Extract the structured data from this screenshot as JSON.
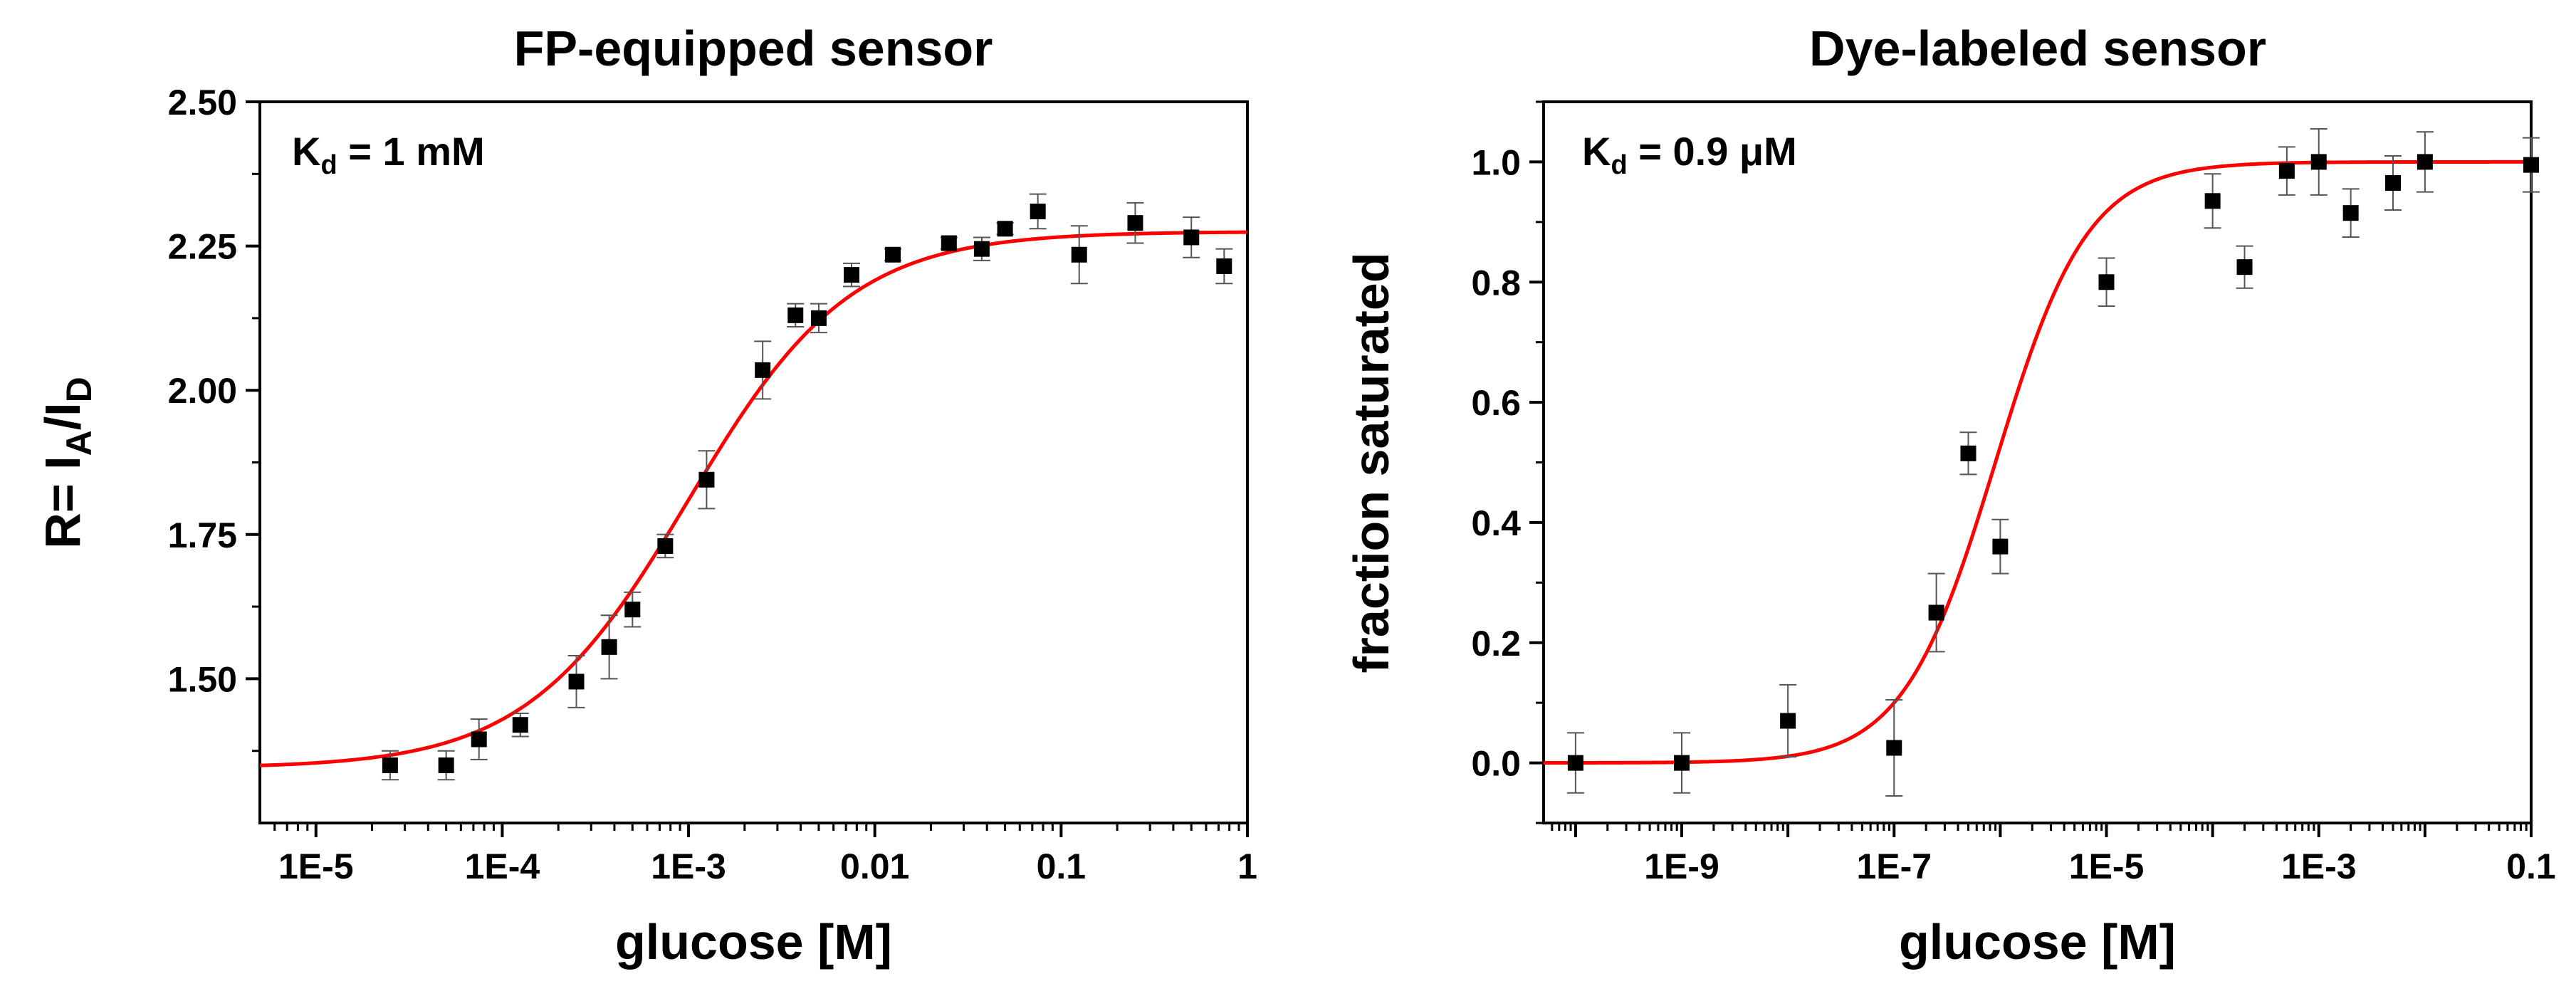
{
  "colors": {
    "fit_line": "#ff0000",
    "markers": "#000000",
    "error_bars": "#555555",
    "axes": "#000000",
    "background": "#ffffff"
  },
  "chart_data": [
    {
      "type": "scatter",
      "title": "FP-equipped sensor",
      "xlabel": "glucose [M]",
      "ylabel": {
        "prefix": "R= I",
        "sub1": "A",
        "mid": "/I",
        "sub2": "D"
      },
      "x_scale": "log",
      "xlim": [
        5e-06,
        1
      ],
      "ylim": [
        1.25,
        2.5
      ],
      "x_ticks": [
        {
          "value": 1e-05,
          "label": "1E-5"
        },
        {
          "value": 0.0001,
          "label": "1E-4"
        },
        {
          "value": 0.001,
          "label": "1E-3"
        },
        {
          "value": 0.01,
          "label": "0.01"
        },
        {
          "value": 0.1,
          "label": "0.1"
        },
        {
          "value": 1,
          "label": "1"
        }
      ],
      "y_ticks": [
        {
          "value": 1.5,
          "label": "1.50"
        },
        {
          "value": 1.75,
          "label": "1.75"
        },
        {
          "value": 2.0,
          "label": "2.00"
        },
        {
          "value": 2.25,
          "label": "2.25"
        },
        {
          "value": 2.5,
          "label": "2.50"
        }
      ],
      "annotation": {
        "main": "K",
        "sub": "d",
        "rest": " = 1 mM"
      },
      "fit": {
        "model": "hill",
        "bottom": 1.345,
        "top": 2.275,
        "kd": 0.001,
        "n": 1
      },
      "points": [
        {
          "x": 2.5e-05,
          "y": 1.35,
          "err": 0.025
        },
        {
          "x": 5e-05,
          "y": 1.35,
          "err": 0.025
        },
        {
          "x": 7.5e-05,
          "y": 1.395,
          "err": 0.035
        },
        {
          "x": 0.000125,
          "y": 1.42,
          "err": 0.02
        },
        {
          "x": 0.00025,
          "y": 1.495,
          "err": 0.045
        },
        {
          "x": 0.000375,
          "y": 1.555,
          "err": 0.055
        },
        {
          "x": 0.0005,
          "y": 1.62,
          "err": 0.03
        },
        {
          "x": 0.00075,
          "y": 1.73,
          "err": 0.02
        },
        {
          "x": 0.00125,
          "y": 1.845,
          "err": 0.05
        },
        {
          "x": 0.0025,
          "y": 2.035,
          "err": 0.05
        },
        {
          "x": 0.00375,
          "y": 2.13,
          "err": 0.02
        },
        {
          "x": 0.005,
          "y": 2.125,
          "err": 0.025
        },
        {
          "x": 0.0075,
          "y": 2.2,
          "err": 0.02
        },
        {
          "x": 0.0125,
          "y": 2.235,
          "err": 0.01
        },
        {
          "x": 0.025,
          "y": 2.255,
          "err": 0.01
        },
        {
          "x": 0.0375,
          "y": 2.245,
          "err": 0.02
        },
        {
          "x": 0.05,
          "y": 2.28,
          "err": 0.01
        },
        {
          "x": 0.075,
          "y": 2.31,
          "err": 0.03
        },
        {
          "x": 0.125,
          "y": 2.235,
          "err": 0.05
        },
        {
          "x": 0.25,
          "y": 2.29,
          "err": 0.035
        },
        {
          "x": 0.5,
          "y": 2.265,
          "err": 0.035
        },
        {
          "x": 0.75,
          "y": 2.215,
          "err": 0.03
        }
      ]
    },
    {
      "type": "scatter",
      "title": "Dye-labeled sensor",
      "xlabel": "glucose [M]",
      "ylabel": "fraction saturated",
      "x_scale": "log",
      "xlim": [
        5e-11,
        0.1
      ],
      "ylim": [
        -0.1,
        1.1
      ],
      "x_ticks": [
        {
          "value": 1e-09,
          "label": "1E-9"
        },
        {
          "value": 1e-07,
          "label": "1E-7"
        },
        {
          "value": 1e-05,
          "label": "1E-5"
        },
        {
          "value": 0.001,
          "label": "1E-3"
        },
        {
          "value": 0.1,
          "label": "0.1"
        }
      ],
      "y_ticks": [
        {
          "value": 0.0,
          "label": "0.0"
        },
        {
          "value": 0.2,
          "label": "0.2"
        },
        {
          "value": 0.4,
          "label": "0.4"
        },
        {
          "value": 0.6,
          "label": "0.6"
        },
        {
          "value": 0.8,
          "label": "0.8"
        },
        {
          "value": 1.0,
          "label": "1.0"
        }
      ],
      "annotation": {
        "main": "K",
        "sub": "d",
        "rest": " = 0.9 μM"
      },
      "fit": {
        "model": "hill",
        "bottom": 0.0,
        "top": 1.0,
        "kd": 9e-07,
        "n": 1
      },
      "points": [
        {
          "x": 1e-10,
          "y": 0.0,
          "err": 0.05
        },
        {
          "x": 1e-09,
          "y": 0.0,
          "err": 0.05
        },
        {
          "x": 1e-08,
          "y": 0.07,
          "err": 0.06
        },
        {
          "x": 1e-07,
          "y": 0.025,
          "err": 0.08
        },
        {
          "x": 2.5e-07,
          "y": 0.25,
          "err": 0.065
        },
        {
          "x": 5e-07,
          "y": 0.515,
          "err": 0.035
        },
        {
          "x": 1e-06,
          "y": 0.36,
          "err": 0.045
        },
        {
          "x": 1e-05,
          "y": 0.8,
          "err": 0.04
        },
        {
          "x": 0.0001,
          "y": 0.935,
          "err": 0.045
        },
        {
          "x": 0.0002,
          "y": 0.825,
          "err": 0.035
        },
        {
          "x": 0.0005,
          "y": 0.985,
          "err": 0.04
        },
        {
          "x": 0.001,
          "y": 1.0,
          "err": 0.055
        },
        {
          "x": 0.002,
          "y": 0.915,
          "err": 0.04
        },
        {
          "x": 0.005,
          "y": 0.965,
          "err": 0.045
        },
        {
          "x": 0.01,
          "y": 1.0,
          "err": 0.05
        },
        {
          "x": 0.1,
          "y": 0.995,
          "err": 0.045
        }
      ]
    }
  ]
}
